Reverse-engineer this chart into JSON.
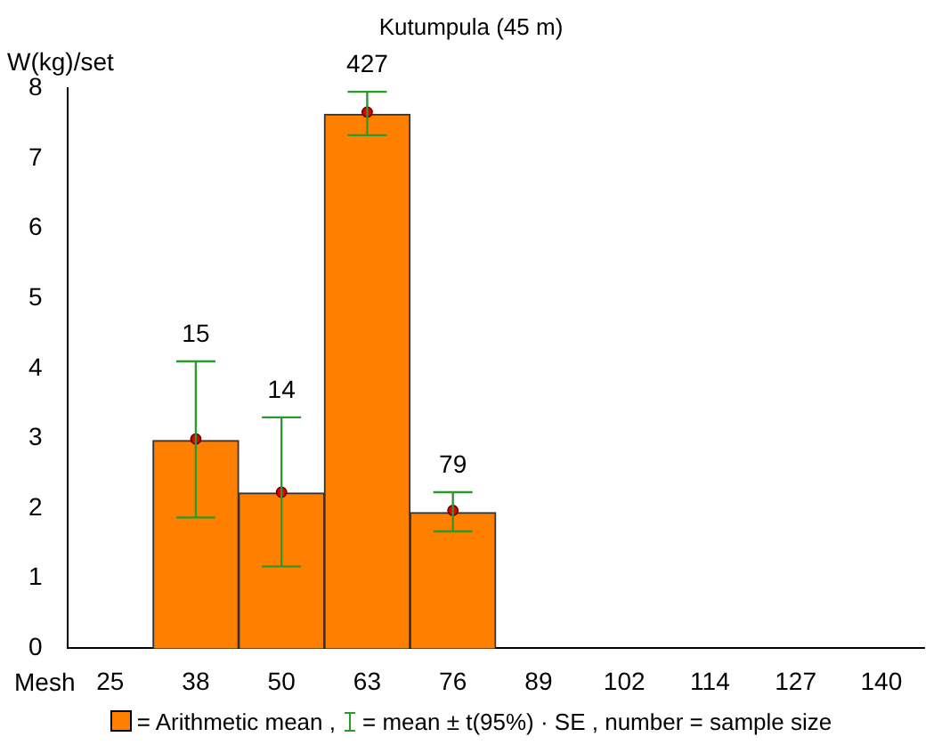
{
  "chart_data": {
    "type": "bar",
    "title": "Kutumpula (45 m)",
    "xlabel": "Mesh",
    "ylabel": "W(kg)/set",
    "categories": [
      "25",
      "38",
      "50",
      "63",
      "76",
      "89",
      "102",
      "114",
      "127",
      "140"
    ],
    "series": [
      {
        "name": "= Arithmetic mean ,",
        "color": "#ff8000",
        "values": [
          null,
          2.97,
          2.22,
          7.63,
          1.94,
          null,
          null,
          null,
          null,
          null
        ],
        "errors": [
          null,
          [
            1.87,
            4.1
          ],
          [
            1.17,
            3.3
          ],
          [
            7.33,
            7.95
          ],
          [
            1.67,
            2.23
          ],
          null,
          null,
          null,
          null,
          null
        ]
      },
      {
        "type": "scatter",
        "color": "#e00000",
        "marker": "circle",
        "x": [
          "38",
          "50",
          "63",
          "76"
        ],
        "values": [
          2.99,
          2.23,
          7.66,
          1.97
        ]
      }
    ],
    "ylim": [
      0,
      8
    ],
    "yticks": [
      0,
      1,
      2,
      3,
      4,
      5,
      6,
      7,
      8
    ],
    "grid": false,
    "legend": "bottom",
    "annotations": [
      {
        "text": "15",
        "x": "38",
        "y": 4.1
      },
      {
        "text": "14",
        "x": "50",
        "y": 3.3
      },
      {
        "text": "427",
        "x": "63",
        "y": 7.95
      },
      {
        "text": "79",
        "x": "76",
        "y": 2.23
      },
      "= mean ± t(95%) · SE  , number = sample size"
    ]
  }
}
